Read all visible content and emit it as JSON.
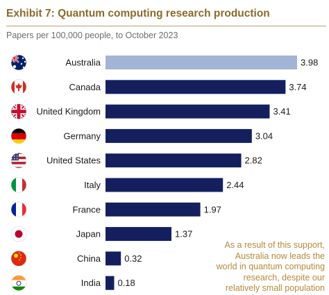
{
  "header": {
    "title": "Exhibit 7: Quantum computing research production",
    "subtitle": "Papers per 100,000 people, to October 2023"
  },
  "chart_data": {
    "type": "bar",
    "orientation": "horizontal",
    "title": "Exhibit 7: Quantum computing research production",
    "subtitle": "Papers per 100,000 people, to October 2023",
    "categories": [
      "Australia",
      "Canada",
      "United Kingdom",
      "Germany",
      "United States",
      "Italy",
      "France",
      "Japan",
      "China",
      "India"
    ],
    "values": [
      3.98,
      3.74,
      3.41,
      3.04,
      2.82,
      2.44,
      1.97,
      1.37,
      0.32,
      0.18
    ],
    "value_labels": [
      "3.98",
      "3.74",
      "3.41",
      "3.04",
      "2.82",
      "2.44",
      "1.97",
      "1.37",
      "0.32",
      "0.18"
    ],
    "flag_icons": [
      "australia-flag-icon",
      "canada-flag-icon",
      "united-kingdom-flag-icon",
      "germany-flag-icon",
      "united-states-flag-icon",
      "italy-flag-icon",
      "france-flag-icon",
      "japan-flag-icon",
      "china-flag-icon",
      "india-flag-icon"
    ],
    "highlight_category": "Australia",
    "xlim": [
      0,
      3.98
    ],
    "grid": false,
    "legend": "none",
    "colors": {
      "bar": "#14205e",
      "highlight": "#a3b5d6",
      "title": "#8a6b2c",
      "annotation": "#b58a3b"
    }
  },
  "annotation": {
    "lines": [
      "As a result of this support,",
      "Australia now leads the",
      "world in quantum computing",
      "research, despite our",
      "relatively small population"
    ]
  }
}
